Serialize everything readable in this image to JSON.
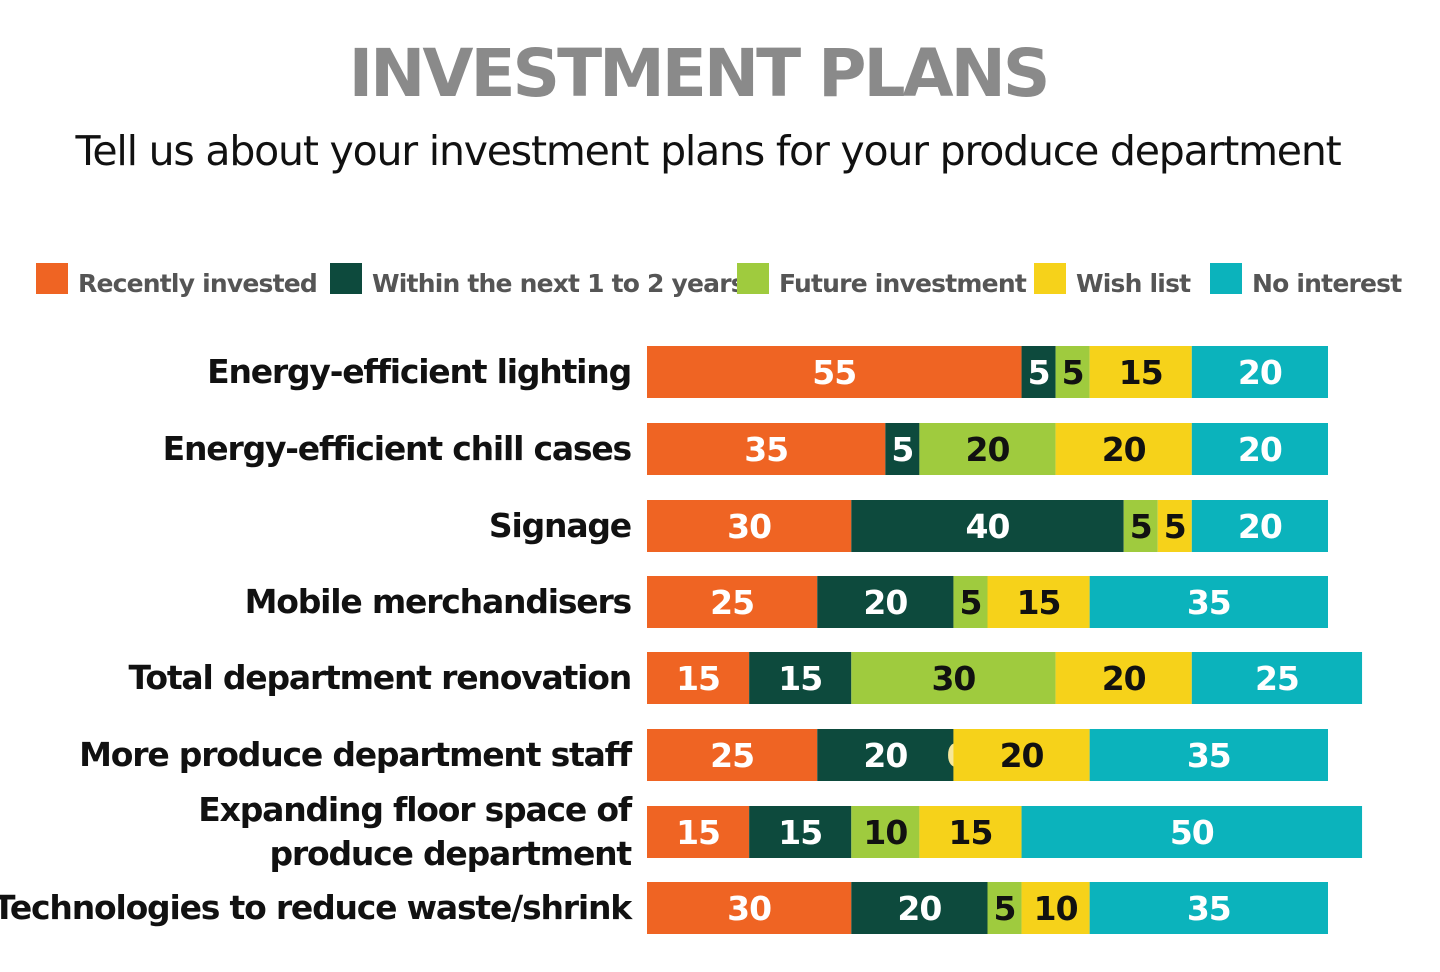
{
  "chart_data": {
    "type": "bar",
    "orientation": "horizontal",
    "stacked": true,
    "title": "INVESTMENT PLANS",
    "subtitle": "Tell us about your investment plans for your produce department",
    "legend_position": "top",
    "categories": [
      "Energy-efficient lighting",
      "Energy-efficient chill cases",
      "Signage",
      "Mobile merchandisers",
      "Total department renovation",
      "More produce department staff",
      "Expanding floor space of produce department",
      "Technologies to reduce waste/shrink"
    ],
    "category_lines": [
      [
        "Energy-efficient lighting"
      ],
      [
        "Energy-efficient chill cases"
      ],
      [
        "Signage"
      ],
      [
        "Mobile merchandisers"
      ],
      [
        "Total department renovation"
      ],
      [
        "More produce department staff"
      ],
      [
        "Expanding floor space of",
        "produce department"
      ],
      [
        "Technologies to reduce waste/shrink"
      ]
    ],
    "series": [
      {
        "name": "Recently invested",
        "color": "#ef6423",
        "label_color": "#ffffff",
        "values": [
          55,
          35,
          30,
          25,
          15,
          25,
          15,
          30
        ]
      },
      {
        "name": "Within the next 1 to 2 years",
        "color": "#0d4a3d",
        "label_color": "#ffffff",
        "values": [
          5,
          5,
          40,
          20,
          15,
          20,
          15,
          20
        ]
      },
      {
        "name": "Future investment",
        "color": "#9fcb3e",
        "label_color": "#111111",
        "values": [
          5,
          20,
          5,
          5,
          30,
          0,
          10,
          5
        ]
      },
      {
        "name": "Wish list",
        "color": "#f6d21a",
        "label_color": "#111111",
        "values": [
          15,
          20,
          5,
          15,
          20,
          20,
          15,
          10
        ]
      },
      {
        "name": "No interest",
        "color": "#0bb3bc",
        "label_color": "#ffffff",
        "values": [
          20,
          20,
          20,
          35,
          25,
          35,
          50,
          35
        ]
      }
    ],
    "xlim": [
      0,
      100
    ],
    "grid": false
  }
}
